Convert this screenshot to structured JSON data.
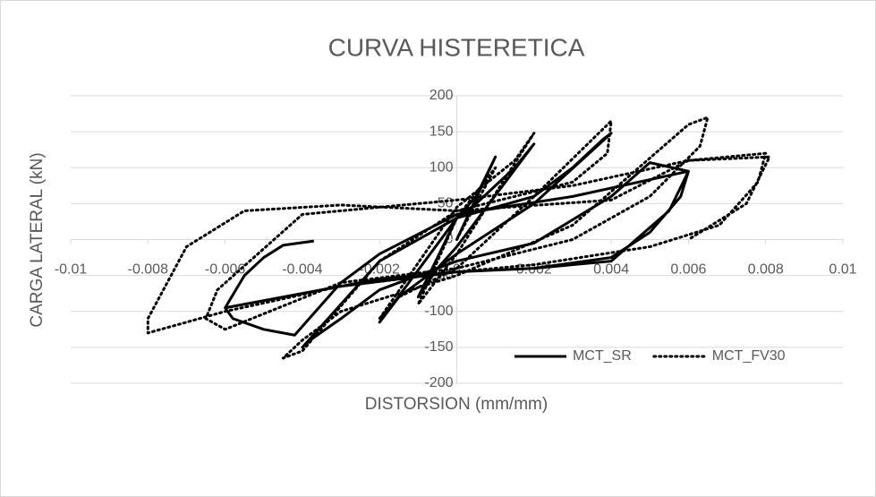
{
  "chart_data": {
    "type": "line",
    "title": "CURVA HISTERETICA",
    "x_label": "DISTORSION (mm/mm)",
    "y_label": "CARGA LATERAL (kN)",
    "xlim": [
      -0.01,
      0.01
    ],
    "xticks": [
      -0.01,
      -0.008,
      -0.006,
      -0.004,
      -0.002,
      0,
      0.002,
      0.004,
      0.006,
      0.008,
      0.01
    ],
    "ylim": [
      -200,
      200
    ],
    "yticks": [
      -200,
      -150,
      -100,
      -50,
      0,
      50,
      100,
      150,
      200
    ],
    "grid": true,
    "legend": "lower-right",
    "series": [
      {
        "name": "MCT_SR",
        "color": "#000000",
        "dash": "solid",
        "x": [
          0,
          0.001,
          0.0005,
          0,
          -0.001,
          -0.0005,
          0,
          0.002,
          0.0015,
          0.0005,
          0,
          -0.002,
          -0.0015,
          -0.0005,
          0,
          0.002,
          0.004,
          0.0038,
          0.003,
          0.002,
          0,
          -0.002,
          -0.004,
          -0.0038,
          -0.003,
          -0.002,
          0,
          0.002,
          0.004,
          0.005,
          0.006,
          0.0058,
          0.005,
          0.004,
          0.002,
          0,
          -0.002,
          -0.004,
          -0.006,
          -0.0058,
          -0.005,
          -0.0042,
          -0.003,
          -0.002,
          0,
          0.003,
          0.006,
          0.0055,
          0.004,
          0.002,
          0,
          -0.003,
          -0.006,
          -0.0055,
          -0.005,
          -0.0045,
          -0.0037
        ],
        "values": [
          0,
          115,
          60,
          30,
          -80,
          -40,
          -10,
          133,
          100,
          50,
          30,
          -115,
          -80,
          -40,
          -20,
          50,
          148,
          140,
          100,
          60,
          30,
          -30,
          -150,
          -140,
          -110,
          -70,
          -30,
          -5,
          60,
          107,
          95,
          60,
          10,
          -25,
          -40,
          -45,
          -55,
          -75,
          -95,
          -110,
          -125,
          -133,
          -60,
          -20,
          35,
          60,
          95,
          40,
          -30,
          -40,
          -45,
          -65,
          -95,
          -50,
          -25,
          -8,
          -2
        ]
      },
      {
        "name": "MCT_FV30",
        "color": "#000000",
        "dash": "dotted",
        "x": [
          0,
          0.001,
          0,
          -0.001,
          0,
          0.002,
          0.0015,
          0,
          -0.002,
          -0.0015,
          0,
          0.002,
          0.004,
          0.0039,
          0.003,
          0,
          -0.002,
          -0.004,
          -0.0045,
          -0.004,
          -0.003,
          0,
          0.003,
          0.006,
          0.0065,
          0.0063,
          0.005,
          0.003,
          0,
          -0.003,
          -0.006,
          -0.0065,
          -0.0062,
          -0.004,
          -0.002,
          0,
          0.003,
          0.006,
          0.008,
          0.0078,
          0.0068,
          0.005,
          0.002,
          0,
          -0.003,
          -0.006,
          -0.008,
          -0.008,
          -0.0075,
          -0.007,
          -0.0055,
          -0.003,
          0,
          0.004,
          0.006,
          0.0081,
          0.0075,
          0.006
        ],
        "values": [
          0,
          100,
          30,
          -90,
          -20,
          148,
          110,
          45,
          -110,
          -80,
          -40,
          60,
          165,
          120,
          80,
          40,
          -30,
          -155,
          -165,
          -140,
          -100,
          -50,
          20,
          160,
          170,
          130,
          60,
          0,
          -40,
          -60,
          -125,
          -110,
          -70,
          35,
          45,
          55,
          75,
          110,
          120,
          80,
          20,
          -10,
          -35,
          -45,
          -65,
          -100,
          -130,
          -110,
          -60,
          -10,
          40,
          48,
          40,
          55,
          110,
          115,
          50,
          0
        ]
      }
    ]
  }
}
